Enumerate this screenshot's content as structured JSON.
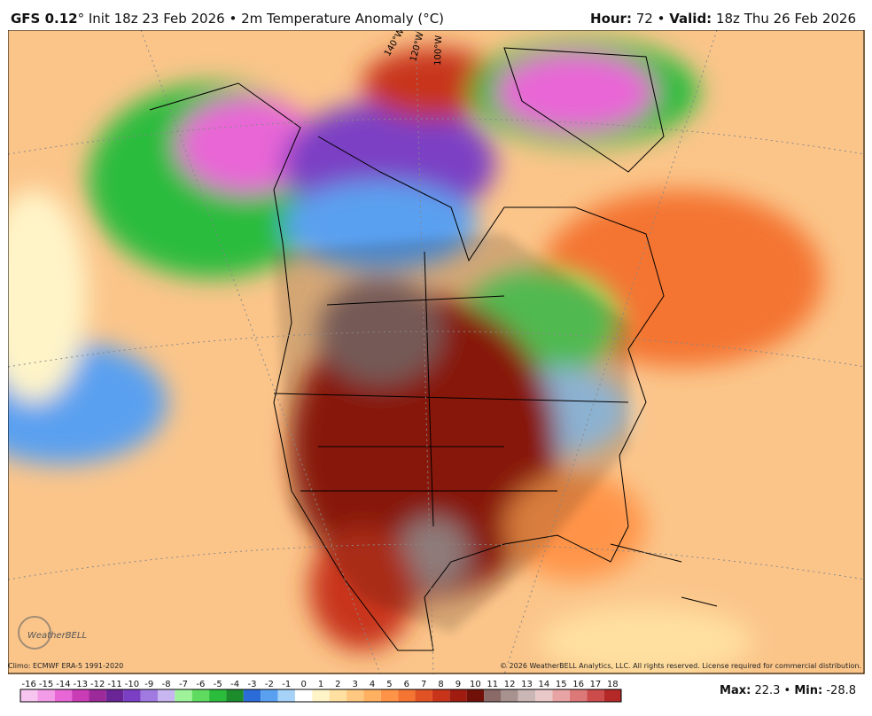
{
  "header": {
    "model": "GFS 0.12",
    "model_suffix": "° Init 18z 23 Feb 2026 • 2m Temperature Anomaly (°C)",
    "hour_label": "Hour:",
    "hour": 72,
    "separator": "•",
    "valid_label": "Valid:",
    "valid": "18z Thu 26 Feb 2026"
  },
  "map": {
    "meridians": [
      "140°W",
      "120°W",
      "100°W"
    ],
    "logo": "WeatherBELL",
    "climo": "Climo: ECMWF ERA-5 1991-2020",
    "copyright": "© 2026 WeatherBELL Analytics, LLC. All rights reserved. License required for commercial distribution."
  },
  "colorbar": {
    "ticks": [
      -16,
      -15,
      -14,
      -13,
      -12,
      -11,
      -10,
      -9,
      -8,
      -7,
      -6,
      -5,
      -4,
      -3,
      -2,
      -1,
      0,
      1,
      2,
      3,
      4,
      5,
      6,
      7,
      8,
      9,
      10,
      11,
      12,
      13,
      14,
      15,
      16,
      17,
      18
    ],
    "colors": [
      "#f7c6f0",
      "#f29be6",
      "#e866d6",
      "#c93cb6",
      "#9c2a9a",
      "#6a2596",
      "#7b3fc4",
      "#a07ae0",
      "#c8b6f0",
      "#9df29a",
      "#5fdc5f",
      "#2cbc3c",
      "#1c8c2c",
      "#2c6cd8",
      "#5aa0f0",
      "#a6d2f8",
      "#ffffff",
      "#fff4c8",
      "#ffe0a0",
      "#ffc880",
      "#ffb060",
      "#ff9448",
      "#f47432",
      "#e05224",
      "#c8341a",
      "#a01c10",
      "#701008",
      "#8a6a66",
      "#a89290",
      "#cab6b4",
      "#e8c8c8",
      "#e8a4a4",
      "#dc7878",
      "#cc4c4c",
      "#b42828"
    ]
  },
  "stats": {
    "max_label": "Max:",
    "max": 22.3,
    "separator": "•",
    "min_label": "Min:",
    "min": -28.8
  }
}
